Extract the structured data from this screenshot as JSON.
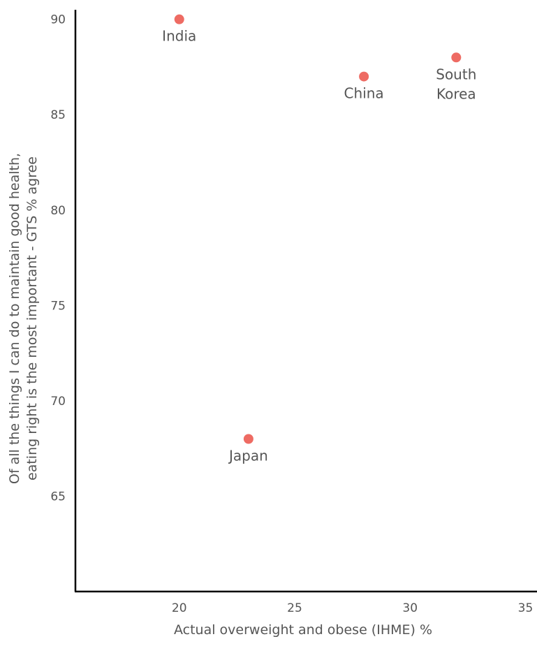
{
  "chart_data": {
    "type": "scatter",
    "xlabel": "Actual overweight and obese (IHME) %",
    "ylabel_lines": [
      "Of all the things I can do to maintain good health,",
      "eating right is the most important - GTS % agree"
    ],
    "xlim": [
      15.5,
      35.5
    ],
    "ylim": [
      60,
      90.5
    ],
    "x_ticks": [
      20,
      25,
      30,
      35
    ],
    "y_ticks": [
      65,
      70,
      75,
      80,
      85,
      90
    ],
    "grid": false,
    "point_color": "#ee6b63",
    "points": [
      {
        "label_lines": [
          "India"
        ],
        "x": 20,
        "y": 90
      },
      {
        "label_lines": [
          "China"
        ],
        "x": 28,
        "y": 87
      },
      {
        "label_lines": [
          "South",
          "Korea"
        ],
        "x": 32,
        "y": 88
      },
      {
        "label_lines": [
          "Japan"
        ],
        "x": 23,
        "y": 68
      }
    ]
  }
}
